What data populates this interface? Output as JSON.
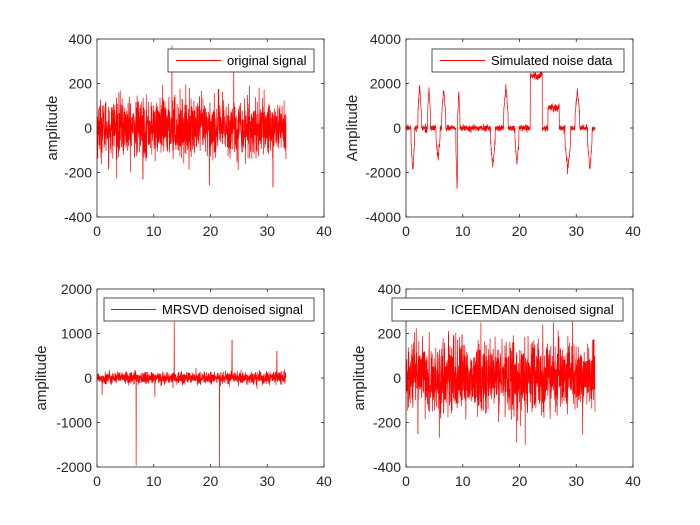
{
  "colors": {
    "signal": "#ff0000",
    "axes": "#262626",
    "background": "#ffffff"
  },
  "chart_data": [
    {
      "type": "line",
      "legend": "original signal",
      "ylabel": "amplitude",
      "xlim": [
        0,
        40
      ],
      "ylim": [
        -400,
        400
      ],
      "xticks": [
        0,
        10,
        20,
        30,
        40
      ],
      "yticks": [
        -400,
        -200,
        0,
        200,
        400
      ],
      "x_extent": [
        0,
        33.3
      ],
      "kind": "noise",
      "noise_std": 65,
      "spikes": [
        [
          13.2,
          370
        ],
        [
          24.1,
          280
        ],
        [
          8.1,
          -230
        ],
        [
          19.8,
          -255
        ],
        [
          31.0,
          -265
        ]
      ]
    },
    {
      "type": "line",
      "legend": "Simulated noise data",
      "ylabel": "Amplitude",
      "xlim": [
        0,
        40
      ],
      "ylim": [
        -4000,
        4000
      ],
      "xticks": [
        0,
        10,
        20,
        30,
        40
      ],
      "yticks": [
        -4000,
        -2000,
        0,
        2000,
        4000
      ],
      "x_extent": [
        0,
        33.3
      ],
      "kind": "pulses",
      "baseline": 0,
      "pulses": [
        [
          0.9,
          1.5,
          -1900
        ],
        [
          2.1,
          2.7,
          1950
        ],
        [
          3.8,
          4.3,
          1800
        ],
        [
          5.3,
          6.0,
          -1400
        ],
        [
          6.3,
          7.0,
          1750
        ],
        [
          8.8,
          9.2,
          -2800
        ],
        [
          9.1,
          9.5,
          1600
        ],
        [
          14.9,
          15.7,
          -1700
        ],
        [
          17.2,
          18.0,
          1850
        ],
        [
          19.2,
          19.9,
          -1650
        ],
        [
          21.9,
          24.0,
          2350
        ],
        [
          25.0,
          27.0,
          900
        ],
        [
          28.0,
          29.0,
          -1850
        ],
        [
          29.8,
          30.6,
          1700
        ],
        [
          32.0,
          32.8,
          -1850
        ]
      ]
    },
    {
      "type": "line",
      "legend": "MRSVD denoised signal",
      "ylabel": "amplitude",
      "xlim": [
        0,
        40
      ],
      "ylim": [
        -2000,
        2000
      ],
      "xticks": [
        0,
        10,
        20,
        30,
        40
      ],
      "yticks": [
        -2000,
        -1000,
        0,
        1000,
        2000
      ],
      "x_extent": [
        0,
        33.3
      ],
      "kind": "noise",
      "noise_std": 70,
      "spikes": [
        [
          6.9,
          -1970
        ],
        [
          13.6,
          1300
        ],
        [
          21.6,
          -2000
        ],
        [
          23.8,
          850
        ],
        [
          31.7,
          600
        ],
        [
          0.9,
          -380
        ],
        [
          10.2,
          -420
        ]
      ]
    },
    {
      "type": "line",
      "legend": "ICEEMDAN denoised signal",
      "ylabel": "amplitude",
      "xlim": [
        0,
        40
      ],
      "ylim": [
        -400,
        400
      ],
      "xticks": [
        0,
        10,
        20,
        30,
        40
      ],
      "yticks": [
        -400,
        -200,
        0,
        200,
        400
      ],
      "x_extent": [
        0,
        33.3
      ],
      "kind": "noise",
      "noise_std": 80,
      "spikes": [
        [
          13.2,
          250
        ],
        [
          24.1,
          240
        ],
        [
          21.0,
          -300
        ],
        [
          19.5,
          -290
        ],
        [
          26.0,
          250
        ],
        [
          2.1,
          -250
        ]
      ]
    }
  ]
}
